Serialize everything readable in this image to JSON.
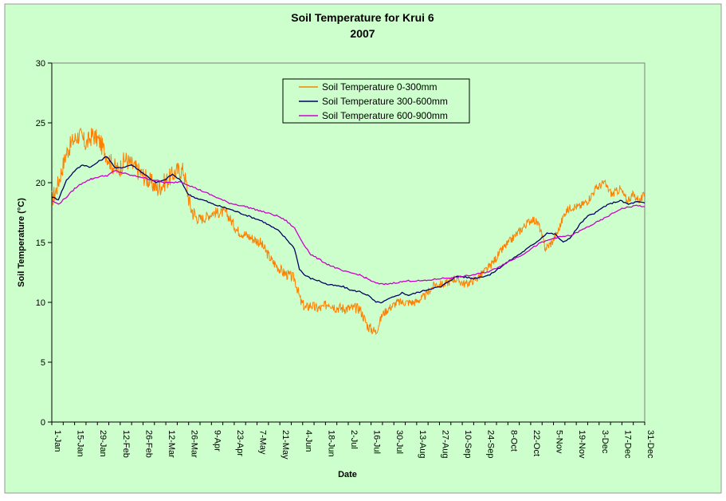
{
  "chart_data": {
    "type": "line",
    "title": "Soil Temperature for Krui 6",
    "subtitle": "2007",
    "xlabel": "Date",
    "ylabel": "Soil Temperature (°C)",
    "ylim": [
      0,
      30
    ],
    "y_ticks": [
      0,
      5,
      10,
      15,
      20,
      25,
      30
    ],
    "x_tick_labels": [
      "1-Jan",
      "15-Jan",
      "29-Jan",
      "12-Feb",
      "26-Feb",
      "12-Mar",
      "26-Mar",
      "9-Apr",
      "23-Apr",
      "7-May",
      "21-May",
      "4-Jun",
      "18-Jun",
      "2-Jul",
      "16-Jul",
      "30-Jul",
      "13-Aug",
      "27-Aug",
      "10-Sep",
      "24-Sep",
      "8-Oct",
      "22-Oct",
      "5-Nov",
      "19-Nov",
      "3-Dec",
      "17-Dec",
      "31-Dec"
    ],
    "grid": false,
    "legend_position": "top-center",
    "colors": {
      "plot_bg": "#ccffcc",
      "outer_bg": "#ccffcc"
    },
    "x_unit": "day of year 2007",
    "series": [
      {
        "name": "Soil Temperature  0-300mm",
        "color": "#ff8000",
        "x": [
          1,
          4,
          7,
          10,
          14,
          18,
          22,
          26,
          30,
          34,
          38,
          42,
          46,
          50,
          54,
          58,
          62,
          66,
          70,
          74,
          78,
          82,
          86,
          90,
          94,
          100,
          108,
          115,
          122,
          129,
          136,
          143,
          150,
          154,
          157,
          160,
          163,
          167,
          171,
          175,
          180,
          185,
          190,
          195,
          200,
          204,
          208,
          213,
          218,
          224,
          230,
          236,
          242,
          248,
          255,
          262,
          270,
          278,
          285,
          292,
          296,
          300,
          304,
          308,
          312,
          316,
          320,
          325,
          330,
          335,
          340,
          345,
          350,
          354,
          358,
          362,
          365
        ],
        "values": [
          18.6,
          19.5,
          21,
          22.5,
          23.5,
          24,
          23.2,
          24,
          23.5,
          22.5,
          21.5,
          21,
          22,
          21.5,
          21,
          20.5,
          20,
          19.5,
          20,
          20.5,
          21,
          21,
          18,
          17,
          17,
          17.5,
          17.5,
          16,
          15.5,
          15,
          13.5,
          12.5,
          12,
          10,
          9.5,
          9.8,
          9.5,
          9.5,
          10,
          9.6,
          9.5,
          9.5,
          9.5,
          8,
          7.5,
          9,
          9.5,
          10,
          10,
          10,
          10.5,
          11.5,
          11.5,
          12,
          11.5,
          12,
          13,
          14.5,
          15.5,
          16.5,
          17,
          16.5,
          14.5,
          15,
          16,
          17.5,
          18,
          18,
          18.5,
          19.5,
          20,
          19,
          19.5,
          18.5,
          19,
          18.5,
          19
        ]
      },
      {
        "name": "Soil Temperature 300-600mm",
        "color": "#000066",
        "x": [
          1,
          5,
          10,
          15,
          20,
          25,
          30,
          35,
          40,
          45,
          50,
          55,
          60,
          65,
          70,
          75,
          80,
          85,
          90,
          95,
          100,
          110,
          120,
          130,
          140,
          145,
          150,
          153,
          156,
          160,
          165,
          170,
          175,
          180,
          185,
          190,
          195,
          200,
          204,
          208,
          212,
          216,
          220,
          225,
          230,
          235,
          240,
          245,
          250,
          255,
          260,
          270,
          280,
          290,
          300,
          305,
          310,
          315,
          320,
          325,
          330,
          335,
          340,
          345,
          350,
          355,
          360,
          365
        ],
        "values": [
          18.8,
          18.6,
          20.2,
          21,
          21.5,
          21.3,
          21.8,
          22.2,
          21.2,
          21.3,
          21.5,
          21,
          20.5,
          20,
          20.2,
          20.7,
          20.2,
          19,
          18.7,
          18.5,
          18.2,
          17.8,
          17.3,
          16.8,
          16,
          15.3,
          14.5,
          12.8,
          12.3,
          12,
          11.8,
          11.5,
          11.4,
          11.3,
          11,
          10.9,
          10.6,
          10,
          10,
          10.3,
          10.5,
          10.8,
          10.6,
          10.8,
          11,
          11.2,
          11.3,
          11.8,
          12.2,
          12.1,
          12,
          12.3,
          13.3,
          14.2,
          15.2,
          15.8,
          15.7,
          15,
          15.5,
          16.5,
          17.2,
          17.5,
          18,
          18.3,
          18.5,
          18.2,
          18.4,
          18.3
        ]
      },
      {
        "name": "Soil Temperature 600-900mm",
        "color": "#cc00cc",
        "x": [
          1,
          5,
          10,
          15,
          20,
          25,
          30,
          35,
          40,
          45,
          50,
          55,
          60,
          65,
          70,
          75,
          80,
          85,
          90,
          100,
          110,
          120,
          130,
          140,
          145,
          150,
          155,
          160,
          170,
          180,
          190,
          200,
          205,
          210,
          220,
          230,
          240,
          250,
          260,
          270,
          280,
          290,
          300,
          310,
          320,
          330,
          340,
          350,
          360,
          365
        ],
        "values": [
          18.5,
          18.2,
          18.8,
          19.5,
          20,
          20.3,
          20.5,
          20.6,
          21,
          20.8,
          20.6,
          20.5,
          20.3,
          20.2,
          20,
          20,
          20.1,
          19.8,
          19.5,
          18.9,
          18.3,
          18,
          17.6,
          17.2,
          16.8,
          16.2,
          15,
          14,
          13.2,
          12.6,
          12.3,
          11.6,
          11.5,
          11.6,
          11.8,
          11.8,
          12,
          12.1,
          12.3,
          12.6,
          13.3,
          14,
          14.9,
          15.4,
          15.6,
          16.3,
          17,
          17.8,
          18.1,
          18
        ]
      }
    ]
  }
}
